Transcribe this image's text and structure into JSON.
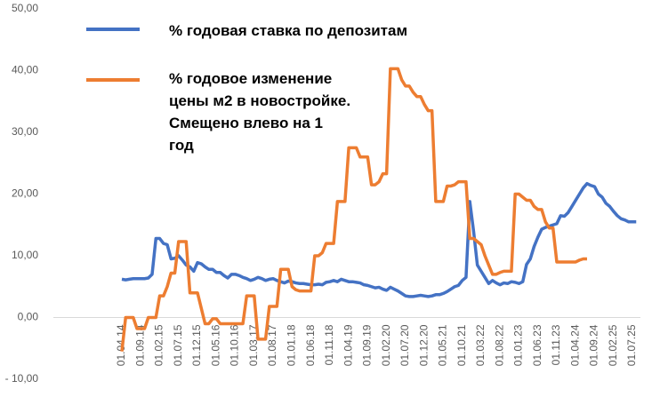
{
  "chart_data": {
    "type": "line",
    "categories": [
      "01.04.14",
      null,
      null,
      null,
      null,
      "01.09.14",
      null,
      null,
      null,
      null,
      "01.02.15",
      null,
      null,
      null,
      null,
      "01.07.15",
      null,
      null,
      null,
      null,
      "01.12.15",
      null,
      null,
      null,
      null,
      "01.05.16",
      null,
      null,
      null,
      null,
      "01.10.16",
      null,
      null,
      null,
      null,
      "01.03.17",
      null,
      null,
      null,
      null,
      "01.08.17",
      null,
      null,
      null,
      null,
      "01.01.18",
      null,
      null,
      null,
      null,
      "01.06.18",
      null,
      null,
      null,
      null,
      "01.11.18",
      null,
      null,
      null,
      null,
      "01.04.19",
      null,
      null,
      null,
      null,
      "01.09.19",
      null,
      null,
      null,
      null,
      "01.02.20",
      null,
      null,
      null,
      null,
      "01.07.20",
      null,
      null,
      null,
      null,
      "01.12.20",
      null,
      null,
      null,
      null,
      "01.05.21",
      null,
      null,
      null,
      null,
      "01.10.21",
      null,
      null,
      null,
      null,
      "01.03.22",
      null,
      null,
      null,
      null,
      "01.08.22",
      null,
      null,
      null,
      null,
      "01.01.23",
      null,
      null,
      null,
      null,
      "01.06.23",
      null,
      null,
      null,
      null,
      "01.11.23",
      null,
      null,
      null,
      null,
      "01.04.24",
      null,
      null,
      null,
      null,
      "01.09.24",
      null,
      null,
      null,
      null,
      "01.02.25",
      null,
      null,
      null,
      null,
      "01.07.25",
      null
    ],
    "series": [
      {
        "name": "% годовая ставка по депозитам",
        "color": "#4472c4",
        "values": [
          6.2,
          6.1,
          6.2,
          6.3,
          6.3,
          6.3,
          6.3,
          6.4,
          7.0,
          12.8,
          12.8,
          12.0,
          11.8,
          9.5,
          9.6,
          10.0,
          9.3,
          8.5,
          8.2,
          7.5,
          8.9,
          8.7,
          8.2,
          7.8,
          7.8,
          7.3,
          7.3,
          6.8,
          6.4,
          7.0,
          7.0,
          6.8,
          6.5,
          6.3,
          6.0,
          6.2,
          6.5,
          6.3,
          6.0,
          6.2,
          6.3,
          6.0,
          5.8,
          5.6,
          5.9,
          5.8,
          5.6,
          5.5,
          5.5,
          5.4,
          5.3,
          5.3,
          5.4,
          5.3,
          5.7,
          5.8,
          6.0,
          5.8,
          6.2,
          6.0,
          5.8,
          5.8,
          5.7,
          5.6,
          5.3,
          5.2,
          5.0,
          4.8,
          4.9,
          4.6,
          4.4,
          4.9,
          4.6,
          4.3,
          3.9,
          3.5,
          3.4,
          3.4,
          3.5,
          3.6,
          3.5,
          3.4,
          3.5,
          3.7,
          3.7,
          3.9,
          4.2,
          4.6,
          5.0,
          5.2,
          6.0,
          6.5,
          18.8,
          14.0,
          8.5,
          7.5,
          6.5,
          5.5,
          6.0,
          5.6,
          5.3,
          5.6,
          5.5,
          5.8,
          5.7,
          5.5,
          5.8,
          8.6,
          9.5,
          11.5,
          13.0,
          14.3,
          14.6,
          14.8,
          15.0,
          15.2,
          16.5,
          16.4,
          17.0,
          18.0,
          19.0,
          20.0,
          21.0,
          21.7,
          21.4,
          21.2,
          20.0,
          19.5,
          18.5,
          18.0,
          17.2,
          16.5,
          16.0,
          15.8,
          15.5,
          15.5,
          15.5
        ]
      },
      {
        "name": "% годовое изменение цены м2 в новостройке. Смещено влево на 1 год",
        "color": "#ed7d31",
        "values": [
          -5.5,
          0,
          0,
          0,
          -1.8,
          -1.8,
          -1.8,
          0,
          0,
          0,
          3.5,
          3.5,
          5.0,
          7.2,
          7.2,
          12.3,
          12.3,
          12.3,
          4.0,
          4.0,
          4.0,
          1.5,
          -1.0,
          -1.0,
          -0.2,
          -0.2,
          -1.0,
          -1.0,
          -1.0,
          -1.0,
          -1.0,
          -1.0,
          -1.0,
          3.5,
          3.5,
          3.5,
          -3.5,
          -3.5,
          -3.5,
          1.8,
          1.8,
          1.8,
          7.8,
          7.8,
          7.8,
          5.0,
          4.5,
          4.3,
          4.3,
          4.3,
          4.3,
          10.0,
          10.0,
          10.5,
          12.0,
          12.0,
          12.0,
          18.8,
          18.8,
          18.8,
          27.5,
          27.5,
          27.5,
          26.0,
          26.0,
          26.0,
          21.5,
          21.5,
          22.0,
          23.3,
          23.3,
          40.3,
          40.3,
          40.3,
          38.5,
          37.5,
          37.5,
          36.5,
          35.8,
          35.8,
          34.5,
          33.5,
          33.5,
          18.8,
          18.8,
          18.8,
          21.3,
          21.3,
          21.5,
          22.0,
          22.0,
          22.0,
          12.8,
          12.8,
          12.3,
          11.8,
          10.0,
          8.5,
          7.0,
          7.0,
          7.3,
          7.5,
          7.5,
          7.5,
          20.0,
          20.0,
          19.5,
          19.0,
          19.0,
          18.0,
          17.5,
          17.5,
          15.5,
          14.5,
          14.5,
          9.0,
          9.0,
          9.0,
          9.0,
          9.0,
          9.0,
          9.3,
          9.5,
          9.5,
          null,
          null,
          null,
          null,
          null,
          null,
          null,
          null,
          null,
          null,
          null,
          null,
          null
        ]
      }
    ],
    "ylim": [
      -10,
      50
    ],
    "yticks": [
      {
        "value": -10,
        "label": "- 10,00"
      },
      {
        "value": 0,
        "label": "0,00"
      },
      {
        "value": 10,
        "label": "10,00"
      },
      {
        "value": 20,
        "label": "20,00"
      },
      {
        "value": 30,
        "label": "30,00"
      },
      {
        "value": 40,
        "label": "40,00"
      },
      {
        "value": 50,
        "label": "50,00"
      }
    ],
    "grid": false
  }
}
